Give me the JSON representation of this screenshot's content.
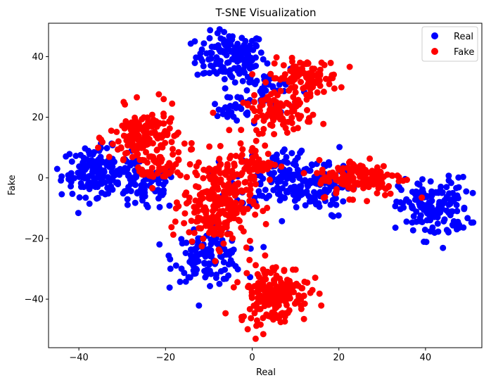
{
  "chart_data": {
    "type": "scatter",
    "title": "T-SNE Visualization",
    "xlabel": "Real",
    "ylabel": "Fake",
    "xlim": [
      -47,
      53
    ],
    "ylim": [
      -56,
      51
    ],
    "xticks": [
      -40,
      -20,
      0,
      20,
      40
    ],
    "yticks": [
      -40,
      -20,
      0,
      20,
      40
    ],
    "xtick_labels": [
      "−40",
      "−20",
      "0",
      "20",
      "40"
    ],
    "ytick_labels": [
      "−40",
      "−20",
      "0",
      "20",
      "40"
    ],
    "grid": false,
    "legend_position": "top-right",
    "series": [
      {
        "name": "Real",
        "color": "#0000ff",
        "clusters": [
          {
            "cx": -5,
            "cy": 40,
            "sx": 4,
            "sy": 4,
            "n": 140
          },
          {
            "cx": 3,
            "cy": 30,
            "sx": 4,
            "sy": 4,
            "n": 50
          },
          {
            "cx": -5,
            "cy": 22,
            "sx": 2,
            "sy": 2,
            "n": 25
          },
          {
            "cx": -36,
            "cy": 2,
            "sx": 4,
            "sy": 4,
            "n": 140
          },
          {
            "cx": -25,
            "cy": -3,
            "sx": 4,
            "sy": 4,
            "n": 80
          },
          {
            "cx": -10,
            "cy": -26,
            "sx": 4,
            "sy": 4,
            "n": 130
          },
          {
            "cx": 8,
            "cy": 0,
            "sx": 6,
            "sy": 5,
            "n": 170
          },
          {
            "cx": 14,
            "cy": -5,
            "sx": 4,
            "sy": 4,
            "n": 50
          },
          {
            "cx": 42,
            "cy": -10,
            "sx": 4,
            "sy": 5,
            "n": 160
          }
        ]
      },
      {
        "name": "Fake",
        "color": "#ff0000",
        "clusters": [
          {
            "cx": 12,
            "cy": 33,
            "sx": 4,
            "sy": 3,
            "n": 110
          },
          {
            "cx": 6,
            "cy": 21,
            "sx": 4,
            "sy": 3,
            "n": 90
          },
          {
            "cx": -25,
            "cy": 13,
            "sx": 4,
            "sy": 5,
            "n": 160
          },
          {
            "cx": -22,
            "cy": 3,
            "sx": 3,
            "sy": 3,
            "n": 40
          },
          {
            "cx": -8,
            "cy": -8,
            "sx": 4,
            "sy": 7,
            "n": 260
          },
          {
            "cx": 0,
            "cy": 5,
            "sx": 3,
            "sy": 3,
            "n": 50
          },
          {
            "cx": 25,
            "cy": 0,
            "sx": 5,
            "sy": 3,
            "n": 140
          },
          {
            "cx": 5,
            "cy": -38,
            "sx": 4,
            "sy": 5,
            "n": 190
          }
        ]
      }
    ]
  }
}
